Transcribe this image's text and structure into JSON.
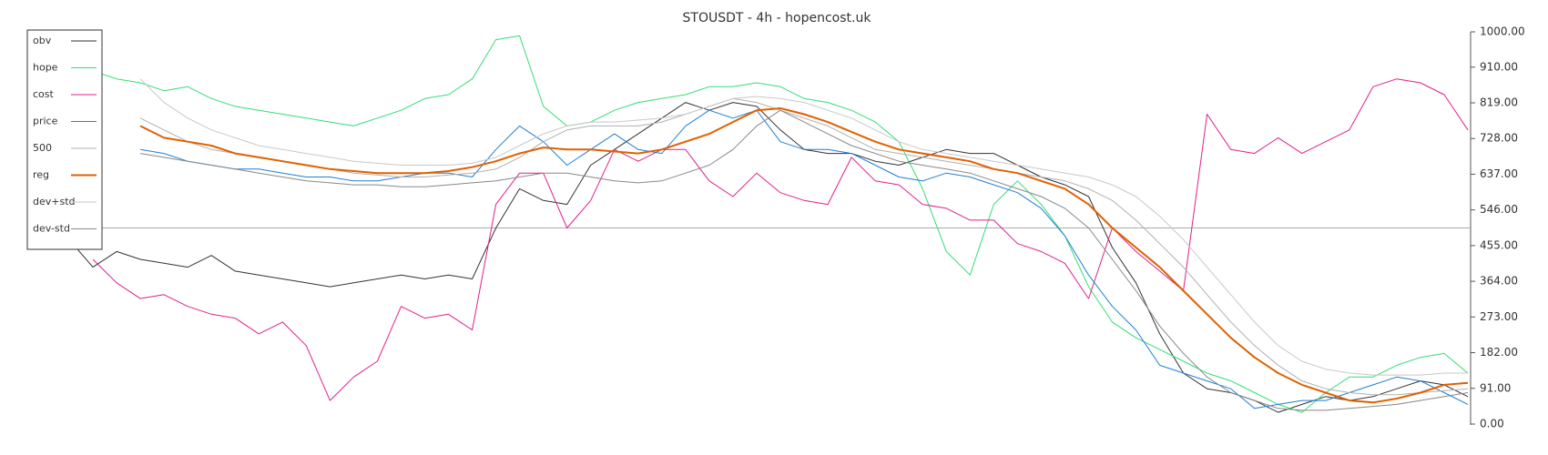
{
  "chart_data": {
    "type": "line",
    "title": "STOUSDT - 4h - hopencost.uk",
    "ylim": [
      0,
      1000
    ],
    "yticks": [
      {
        "value": 0,
        "label": "0.00"
      },
      {
        "value": 91,
        "label": "91.00"
      },
      {
        "value": 182,
        "label": "182.00"
      },
      {
        "value": 273,
        "label": "273.00"
      },
      {
        "value": 364,
        "label": "364.00"
      },
      {
        "value": 455,
        "label": "455.00"
      },
      {
        "value": 546,
        "label": "546.00"
      },
      {
        "value": 637,
        "label": "637.00"
      },
      {
        "value": 728,
        "label": "728.00"
      },
      {
        "value": 819,
        "label": "819.00"
      },
      {
        "value": 910,
        "label": "910.00"
      },
      {
        "value": 1000,
        "label": "1000.00"
      }
    ],
    "hline": 500,
    "legend": "upper left",
    "series": [
      {
        "name": "obv",
        "color": "#333333",
        "width": 1,
        "values": [
          470,
          400,
          440,
          420,
          410,
          400,
          430,
          390,
          380,
          370,
          360,
          350,
          360,
          370,
          380,
          370,
          380,
          370,
          500,
          600,
          570,
          560,
          660,
          700,
          740,
          780,
          820,
          800,
          820,
          810,
          750,
          700,
          690,
          690,
          670,
          660,
          680,
          700,
          690,
          690,
          660,
          630,
          610,
          580,
          450,
          360,
          230,
          130,
          90,
          80,
          60,
          30,
          50,
          70,
          60,
          70,
          90,
          110,
          100,
          70
        ]
      },
      {
        "name": "hope",
        "color": "#33dd77",
        "width": 1,
        "values": [
          910,
          900,
          880,
          870,
          850,
          860,
          830,
          810,
          800,
          790,
          780,
          770,
          760,
          780,
          800,
          830,
          840,
          880,
          980,
          990,
          810,
          760,
          770,
          800,
          820,
          830,
          840,
          860,
          860,
          870,
          860,
          830,
          820,
          800,
          770,
          720,
          600,
          440,
          380,
          560,
          620,
          560,
          480,
          350,
          260,
          220,
          190,
          160,
          130,
          110,
          80,
          50,
          30,
          80,
          120,
          120,
          150,
          170,
          180,
          130
        ]
      },
      {
        "name": "cost",
        "color": "#e0208a",
        "width": 1,
        "values": [
          null,
          420,
          360,
          320,
          330,
          300,
          280,
          270,
          230,
          260,
          200,
          60,
          120,
          160,
          300,
          270,
          280,
          240,
          560,
          640,
          640,
          500,
          570,
          700,
          670,
          700,
          700,
          620,
          580,
          640,
          590,
          570,
          560,
          680,
          620,
          610,
          560,
          550,
          520,
          520,
          460,
          440,
          410,
          320,
          500,
          440,
          390,
          340,
          790,
          700,
          690,
          730,
          690,
          720,
          750,
          860,
          880,
          870,
          840,
          750
        ]
      },
      {
        "name": "price",
        "color": "#1f7fd6",
        "width": 1,
        "values": [
          null,
          null,
          null,
          700,
          690,
          670,
          660,
          650,
          650,
          640,
          630,
          630,
          620,
          620,
          630,
          640,
          640,
          630,
          700,
          760,
          720,
          660,
          700,
          740,
          700,
          690,
          760,
          800,
          780,
          800,
          720,
          700,
          700,
          690,
          660,
          630,
          620,
          640,
          630,
          610,
          590,
          550,
          480,
          380,
          300,
          240,
          150,
          130,
          110,
          90,
          40,
          50,
          60,
          60,
          80,
          100,
          120,
          110,
          80,
          50
        ]
      },
      {
        "name": "500",
        "color": "#b0b0b0",
        "width": 1,
        "values": [
          null,
          null,
          null,
          780,
          750,
          720,
          700,
          690,
          680,
          670,
          660,
          650,
          640,
          635,
          630,
          630,
          635,
          640,
          650,
          680,
          720,
          750,
          760,
          760,
          760,
          770,
          790,
          810,
          830,
          820,
          800,
          780,
          760,
          730,
          700,
          690,
          680,
          670,
          660,
          650,
          640,
          630,
          620,
          600,
          570,
          520,
          460,
          400,
          330,
          260,
          200,
          150,
          110,
          90,
          80,
          75,
          75,
          80,
          85,
          90
        ]
      },
      {
        "name": "reg",
        "color": "#e06000",
        "width": 2,
        "values": [
          null,
          null,
          null,
          760,
          730,
          720,
          710,
          690,
          680,
          670,
          660,
          650,
          645,
          640,
          640,
          640,
          645,
          655,
          670,
          690,
          705,
          700,
          700,
          695,
          690,
          700,
          720,
          740,
          770,
          800,
          805,
          790,
          770,
          745,
          720,
          700,
          690,
          680,
          670,
          650,
          640,
          620,
          600,
          560,
          500,
          450,
          400,
          340,
          280,
          220,
          170,
          130,
          100,
          80,
          60,
          55,
          65,
          80,
          100,
          105
        ]
      },
      {
        "name": "dev+std",
        "color": "#c8c8c8",
        "width": 1,
        "values": [
          null,
          null,
          null,
          880,
          820,
          780,
          750,
          730,
          710,
          700,
          690,
          680,
          670,
          665,
          660,
          660,
          660,
          665,
          680,
          710,
          740,
          760,
          770,
          770,
          775,
          780,
          790,
          810,
          830,
          835,
          830,
          820,
          800,
          780,
          750,
          720,
          700,
          690,
          680,
          670,
          660,
          650,
          640,
          630,
          610,
          580,
          530,
          470,
          400,
          330,
          260,
          200,
          160,
          140,
          130,
          125,
          125,
          125,
          130,
          130
        ]
      },
      {
        "name": "dev-std",
        "color": "#888888",
        "width": 1,
        "values": [
          null,
          null,
          null,
          690,
          680,
          670,
          660,
          650,
          640,
          630,
          620,
          615,
          610,
          610,
          605,
          605,
          610,
          615,
          620,
          630,
          640,
          640,
          630,
          620,
          615,
          620,
          640,
          660,
          700,
          760,
          800,
          770,
          740,
          710,
          690,
          670,
          660,
          650,
          640,
          620,
          600,
          580,
          550,
          500,
          420,
          340,
          250,
          180,
          120,
          80,
          60,
          40,
          35,
          35,
          40,
          45,
          50,
          60,
          70,
          80
        ]
      }
    ]
  }
}
